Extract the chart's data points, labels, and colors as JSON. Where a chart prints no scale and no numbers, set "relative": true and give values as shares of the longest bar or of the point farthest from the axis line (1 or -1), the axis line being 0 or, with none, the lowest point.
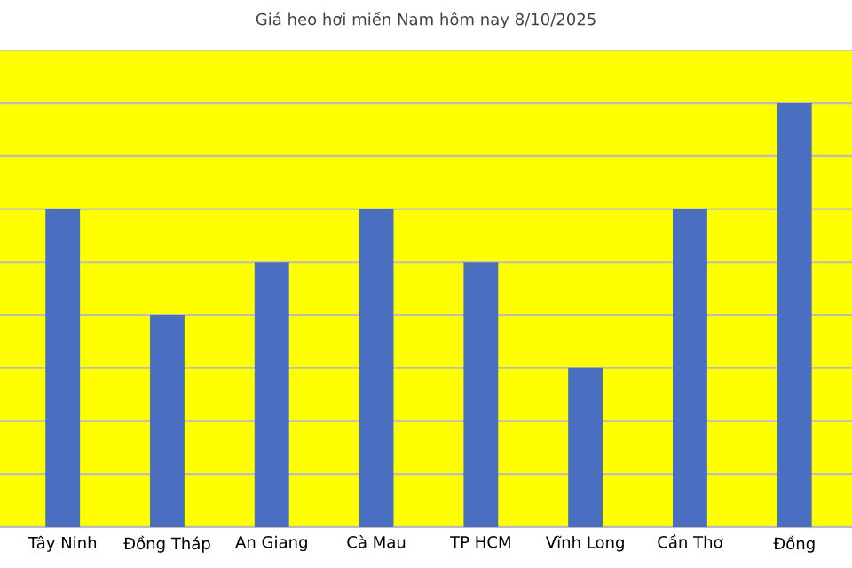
{
  "chart_data": {
    "type": "bar",
    "title": "Giá heo hơi miền Nam hôm nay 8/10/2025",
    "categories": [
      "Tây Ninh",
      "Đồng Tháp",
      "An Giang",
      "Cà Mau",
      "TP HCM",
      "Vĩnh Long",
      "Cần Thơ",
      "Đồng"
    ],
    "values": [
      0.75,
      0.5,
      0.625,
      0.75,
      0.625,
      0.375,
      0.75,
      1
    ],
    "color": "#4a6ec0",
    "relative": true,
    "grid": "y"
  }
}
